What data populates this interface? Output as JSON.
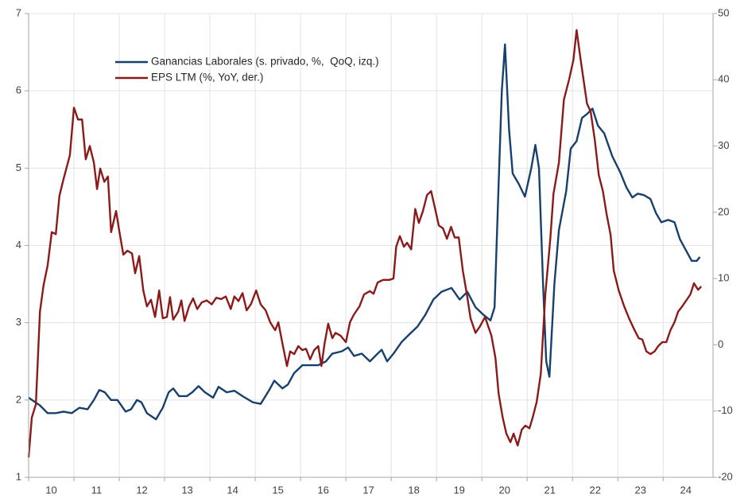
{
  "chart_data": {
    "type": "line",
    "xlim": [
      2010,
      2025.1
    ],
    "xticks": [
      {
        "value": 2010,
        "label": "10"
      },
      {
        "value": 2011,
        "label": "11"
      },
      {
        "value": 2012,
        "label": "12"
      },
      {
        "value": 2013,
        "label": "13"
      },
      {
        "value": 2014,
        "label": "14"
      },
      {
        "value": 2015,
        "label": "15"
      },
      {
        "value": 2016,
        "label": "16"
      },
      {
        "value": 2017,
        "label": "17"
      },
      {
        "value": 2018,
        "label": "18"
      },
      {
        "value": 2019,
        "label": "19"
      },
      {
        "value": 2020,
        "label": "20"
      },
      {
        "value": 2021,
        "label": "21"
      },
      {
        "value": 2022,
        "label": "22"
      },
      {
        "value": 2023,
        "label": "23"
      },
      {
        "value": 2024,
        "label": "24"
      }
    ],
    "ylim": [
      1,
      7
    ],
    "yticks": [
      1,
      2,
      3,
      4,
      5,
      6,
      7
    ],
    "y2lim": [
      -20,
      50
    ],
    "y2ticks": [
      -20,
      -10,
      0,
      10,
      20,
      30,
      40,
      50
    ],
    "grid": true,
    "series": [
      {
        "name": "Ganancias Laborales (s. privado, %,  QoQ, izq.)",
        "color": "#17406d",
        "axis": "y",
        "x": [
          2010.0,
          2010.25,
          2010.42,
          2010.6,
          2010.77,
          2010.95,
          2011.12,
          2011.3,
          2011.44,
          2011.56,
          2011.68,
          2011.82,
          2011.96,
          2012.14,
          2012.26,
          2012.39,
          2012.49,
          2012.61,
          2012.81,
          2012.96,
          2013.09,
          2013.19,
          2013.32,
          2013.49,
          2013.61,
          2013.75,
          2013.89,
          2014.07,
          2014.19,
          2014.37,
          2014.54,
          2014.72,
          2014.95,
          2015.12,
          2015.3,
          2015.42,
          2015.6,
          2015.72,
          2015.86,
          2016.04,
          2016.21,
          2016.39,
          2016.56,
          2016.7,
          2016.91,
          2017.05,
          2017.18,
          2017.35,
          2017.53,
          2017.7,
          2017.79,
          2017.91,
          2018.05,
          2018.23,
          2018.4,
          2018.58,
          2018.75,
          2018.93,
          2019.11,
          2019.33,
          2019.51,
          2019.68,
          2019.86,
          2020.04,
          2020.19,
          2020.28,
          2020.37,
          2020.44,
          2020.51,
          2020.6,
          2020.68,
          2020.81,
          2020.95,
          2021.09,
          2021.18,
          2021.26,
          2021.35,
          2021.42,
          2021.49,
          2021.6,
          2021.7,
          2021.86,
          2021.96,
          2022.09,
          2022.21,
          2022.32,
          2022.44,
          2022.56,
          2022.7,
          2022.88,
          2023.05,
          2023.19,
          2023.32,
          2023.44,
          2023.58,
          2023.72,
          2023.84,
          2023.96,
          2024.11,
          2024.25,
          2024.37,
          2024.49,
          2024.63,
          2024.74,
          2024.81
        ],
        "values": [
          2.03,
          1.93,
          1.83,
          1.83,
          1.85,
          1.83,
          1.9,
          1.88,
          2.0,
          2.13,
          2.1,
          2.0,
          2.0,
          1.85,
          1.88,
          2.0,
          1.97,
          1.83,
          1.75,
          1.9,
          2.1,
          2.15,
          2.05,
          2.05,
          2.1,
          2.18,
          2.1,
          2.03,
          2.17,
          2.1,
          2.12,
          2.05,
          1.97,
          1.95,
          2.12,
          2.25,
          2.15,
          2.2,
          2.35,
          2.45,
          2.45,
          2.45,
          2.5,
          2.6,
          2.63,
          2.68,
          2.57,
          2.6,
          2.5,
          2.6,
          2.65,
          2.5,
          2.6,
          2.75,
          2.85,
          2.95,
          3.1,
          3.3,
          3.4,
          3.45,
          3.3,
          3.4,
          3.2,
          3.1,
          3.03,
          3.2,
          4.8,
          6.0,
          6.6,
          5.5,
          4.93,
          4.8,
          4.63,
          5.0,
          5.3,
          5.0,
          3.5,
          2.5,
          2.3,
          3.5,
          4.2,
          4.7,
          5.25,
          5.35,
          5.65,
          5.7,
          5.77,
          5.55,
          5.45,
          5.15,
          4.95,
          4.75,
          4.62,
          4.67,
          4.65,
          4.6,
          4.42,
          4.3,
          4.33,
          4.3,
          4.08,
          3.95,
          3.8,
          3.8,
          3.85
        ]
      },
      {
        "name": "EPS LTM (%, YoY, der.)",
        "color": "#8b1a1a",
        "axis": "y2",
        "x": [
          2010.0,
          2010.07,
          2010.16,
          2010.25,
          2010.33,
          2010.42,
          2010.51,
          2010.6,
          2010.68,
          2010.77,
          2010.91,
          2011.0,
          2011.09,
          2011.18,
          2011.26,
          2011.35,
          2011.44,
          2011.51,
          2011.58,
          2011.67,
          2011.75,
          2011.82,
          2011.93,
          2012.0,
          2012.09,
          2012.18,
          2012.28,
          2012.35,
          2012.44,
          2012.53,
          2012.61,
          2012.7,
          2012.79,
          2012.88,
          2012.96,
          2013.05,
          2013.12,
          2013.19,
          2013.3,
          2013.37,
          2013.44,
          2013.54,
          2013.63,
          2013.72,
          2013.82,
          2013.93,
          2014.04,
          2014.14,
          2014.25,
          2014.35,
          2014.46,
          2014.54,
          2014.63,
          2014.72,
          2014.81,
          2014.91,
          2015.02,
          2015.12,
          2015.23,
          2015.33,
          2015.44,
          2015.51,
          2015.6,
          2015.7,
          2015.77,
          2015.86,
          2015.95,
          2016.04,
          2016.12,
          2016.21,
          2016.3,
          2016.39,
          2016.46,
          2016.53,
          2016.61,
          2016.7,
          2016.77,
          2016.88,
          2017.0,
          2017.09,
          2017.18,
          2017.3,
          2017.4,
          2017.53,
          2017.61,
          2017.7,
          2017.82,
          2017.96,
          2018.05,
          2018.11,
          2018.19,
          2018.28,
          2018.35,
          2018.44,
          2018.53,
          2018.61,
          2018.7,
          2018.79,
          2018.88,
          2018.96,
          2019.05,
          2019.14,
          2019.23,
          2019.32,
          2019.4,
          2019.49,
          2019.58,
          2019.67,
          2019.75,
          2019.86,
          2019.96,
          2020.07,
          2020.14,
          2020.21,
          2020.3,
          2020.37,
          2020.46,
          2020.54,
          2020.63,
          2020.7,
          2020.79,
          2020.88,
          2020.96,
          2021.05,
          2021.12,
          2021.21,
          2021.3,
          2021.4,
          2021.51,
          2021.58,
          2021.7,
          2021.81,
          2021.93,
          2022.02,
          2022.09,
          2022.19,
          2022.32,
          2022.4,
          2022.49,
          2022.58,
          2022.67,
          2022.75,
          2022.84,
          2022.91,
          2023.02,
          2023.14,
          2023.26,
          2023.37,
          2023.46,
          2023.54,
          2023.63,
          2023.72,
          2023.81,
          2023.89,
          2023.98,
          2024.07,
          2024.16,
          2024.25,
          2024.33,
          2024.42,
          2024.51,
          2024.6,
          2024.68,
          2024.77,
          2024.84
        ],
        "values": [
          -17,
          -11,
          -9,
          5,
          9,
          12,
          17,
          16.7,
          22.5,
          25,
          28.6,
          35.8,
          34,
          34,
          28,
          30,
          27.5,
          23.5,
          26.6,
          24.6,
          25.4,
          17,
          20.2,
          17.2,
          13.6,
          14.2,
          13.8,
          10.8,
          13.4,
          8.2,
          5.8,
          6.8,
          4.2,
          8.2,
          4,
          4.2,
          7.2,
          3.8,
          5,
          6.7,
          3.6,
          5.8,
          7,
          5.4,
          6.4,
          6.7,
          6.1,
          7.1,
          6.9,
          7.3,
          5.4,
          7.3,
          6.6,
          7.8,
          5.2,
          6.2,
          8.2,
          6.1,
          5.2,
          3.4,
          2.2,
          3.4,
          0.2,
          -3.2,
          -1,
          -1.4,
          -0.2,
          -0.8,
          -0.6,
          -2.2,
          -0.8,
          -0.2,
          -3.2,
          0.2,
          3.2,
          1,
          1.8,
          1.4,
          0.4,
          3.4,
          4.6,
          5.8,
          7.6,
          8.1,
          7.7,
          9.4,
          9.8,
          9.8,
          10,
          14.8,
          16.4,
          14.8,
          15.4,
          14.4,
          20.5,
          18.4,
          20.2,
          22.6,
          23.2,
          20.8,
          18,
          17.6,
          16,
          17.8,
          16.2,
          16.2,
          11.2,
          7.6,
          4,
          1.8,
          2.8,
          4.2,
          2.8,
          1.4,
          -2,
          -7.4,
          -11,
          -13.4,
          -14.7,
          -13.4,
          -15.2,
          -12.8,
          -12.2,
          -12.6,
          -11,
          -8.6,
          -4.4,
          7.6,
          16,
          22.8,
          27.5,
          37,
          40.2,
          43,
          47.5,
          42.5,
          36.4,
          35.2,
          31,
          25.6,
          23.2,
          19.8,
          16.6,
          11.2,
          8.2,
          5.8,
          3.8,
          2.2,
          1,
          0.8,
          -1,
          -1.4,
          -1,
          -0.2,
          0.4,
          0.4,
          2.2,
          3.4,
          5,
          5.8,
          6.7,
          7.6,
          9.3,
          8.3,
          8.8
        ]
      }
    ]
  }
}
